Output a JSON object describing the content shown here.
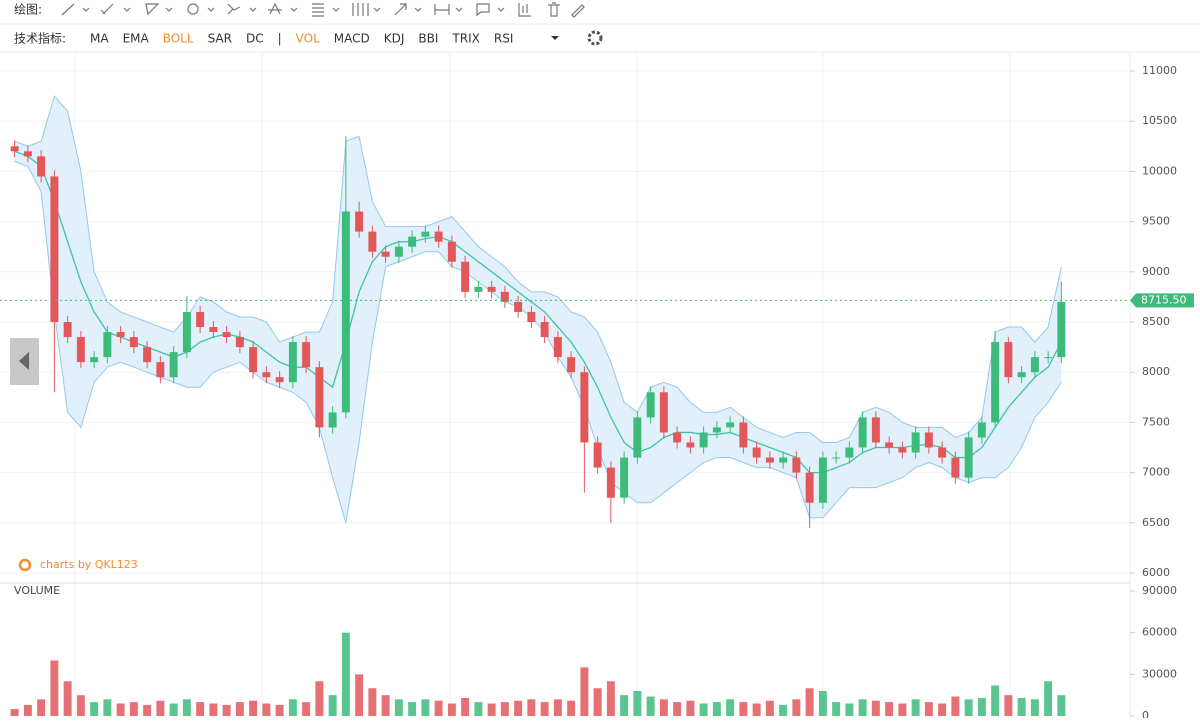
{
  "toolbar": {
    "draw_label": "绘图:",
    "indicator_label": "技术指标:",
    "indicators": [
      "MA",
      "EMA",
      "BOLL",
      "SAR",
      "DC",
      "|",
      "VOL",
      "MACD",
      "KDJ",
      "BBI",
      "TRIX",
      "RSI"
    ],
    "active": [
      "BOLL",
      "VOL"
    ],
    "active_color": "#f08c2e"
  },
  "watermark": "charts by QKL123",
  "chart_data": [
    {
      "type": "candlestick",
      "up_color": "#3dbb7a",
      "down_color": "#e2575a",
      "open": [
        10250,
        10200,
        10150,
        9950,
        8500,
        8350,
        8100,
        8150,
        8400,
        8350,
        8250,
        8100,
        7950,
        8200,
        8600,
        8450,
        8400,
        8350,
        8250,
        8000,
        7950,
        7900,
        8300,
        8050,
        7450,
        7600,
        9600,
        9400,
        9200,
        9150,
        9250,
        9350,
        9400,
        9300,
        9100,
        8800,
        8850,
        8800,
        8700,
        8600,
        8500,
        8350,
        8150,
        8000,
        7300,
        7050,
        6750,
        7150,
        7550,
        7800,
        7400,
        7300,
        7250,
        7400,
        7450,
        7500,
        7250,
        7150,
        7100,
        7150,
        7000,
        6700,
        7150,
        7150,
        7250,
        7550,
        7300,
        7250,
        7200,
        7400,
        7250,
        7150,
        6950,
        7350,
        7500,
        8300,
        7950,
        8000,
        8150,
        8150
      ],
      "high": [
        10310,
        10260,
        10210,
        10010,
        8560,
        8410,
        8210,
        8460,
        8460,
        8410,
        8310,
        8160,
        8260,
        8760,
        8660,
        8510,
        8460,
        8410,
        8310,
        8060,
        8010,
        8360,
        8360,
        8110,
        7660,
        10350,
        9700,
        9460,
        9260,
        9310,
        9410,
        9460,
        9460,
        9360,
        9160,
        8910,
        8910,
        8860,
        8760,
        8660,
        8560,
        8410,
        8210,
        8060,
        7360,
        7110,
        7210,
        7610,
        7860,
        7860,
        7460,
        7360,
        7460,
        7510,
        7560,
        7560,
        7310,
        7210,
        7210,
        7210,
        7060,
        7210,
        7210,
        7310,
        7610,
        7610,
        7360,
        7310,
        7460,
        7460,
        7310,
        7210,
        7410,
        7560,
        8410,
        8350,
        8060,
        8210,
        8210,
        8900
      ],
      "low": [
        10140,
        10090,
        9890,
        7800,
        8290,
        8040,
        8040,
        8090,
        8290,
        8190,
        8040,
        7890,
        7890,
        8140,
        8390,
        8340,
        8290,
        8190,
        7940,
        7890,
        7840,
        7840,
        7990,
        7350,
        7390,
        7540,
        9340,
        9140,
        9090,
        9090,
        9190,
        9290,
        9240,
        9040,
        8740,
        8740,
        8740,
        8640,
        8540,
        8440,
        8290,
        8090,
        7940,
        6800,
        6990,
        6500,
        6690,
        7090,
        7490,
        7340,
        7240,
        7190,
        7190,
        7340,
        7390,
        7190,
        7090,
        7040,
        7040,
        6940,
        6450,
        6640,
        7090,
        7090,
        7190,
        7240,
        7190,
        7140,
        7140,
        7190,
        7090,
        6890,
        6890,
        7290,
        7440,
        7890,
        7890,
        7940,
        8090,
        8090
      ],
      "close": [
        10200,
        10150,
        9950,
        8500,
        8350,
        8100,
        8150,
        8400,
        8350,
        8250,
        8100,
        7950,
        8200,
        8600,
        8450,
        8400,
        8350,
        8250,
        8000,
        7950,
        7900,
        8300,
        8050,
        7450,
        7600,
        9600,
        9400,
        9200,
        9150,
        9250,
        9350,
        9400,
        9300,
        9100,
        8800,
        8850,
        8800,
        8700,
        8600,
        8500,
        8350,
        8150,
        8000,
        7300,
        7050,
        6750,
        7150,
        7550,
        7800,
        7400,
        7300,
        7250,
        7400,
        7450,
        7500,
        7250,
        7150,
        7100,
        7150,
        7000,
        6700,
        7150,
        7150,
        7250,
        7550,
        7300,
        7250,
        7200,
        7400,
        7250,
        7150,
        6950,
        7350,
        7500,
        8300,
        7950,
        8000,
        8150,
        8150,
        8700
      ],
      "boll": {
        "band_color": "#d9ecfa",
        "edge_color": "#93c8ee",
        "mid_color": "#41c4a6",
        "upper": [
          10300,
          10250,
          10300,
          10750,
          10600,
          10000,
          9000,
          8700,
          8600,
          8550,
          8500,
          8450,
          8400,
          8550,
          8750,
          8700,
          8600,
          8550,
          8550,
          8500,
          8300,
          8350,
          8400,
          8400,
          8700,
          10300,
          10350,
          9700,
          9450,
          9450,
          9450,
          9450,
          9500,
          9550,
          9400,
          9250,
          9150,
          9050,
          8900,
          8800,
          8800,
          8750,
          8600,
          8550,
          8400,
          8100,
          7700,
          7600,
          7850,
          7900,
          7850,
          7700,
          7600,
          7600,
          7650,
          7550,
          7450,
          7400,
          7350,
          7400,
          7400,
          7300,
          7300,
          7350,
          7600,
          7650,
          7600,
          7500,
          7450,
          7450,
          7450,
          7350,
          7400,
          7550,
          8400,
          8450,
          8450,
          8300,
          8450,
          9050
        ],
        "mid": [
          10200,
          10150,
          10050,
          9700,
          9300,
          8900,
          8600,
          8400,
          8350,
          8300,
          8250,
          8200,
          8150,
          8200,
          8300,
          8350,
          8380,
          8350,
          8300,
          8200,
          8100,
          8050,
          8050,
          7950,
          7850,
          8300,
          8800,
          9100,
          9250,
          9300,
          9300,
          9330,
          9350,
          9300,
          9200,
          9100,
          9000,
          8900,
          8800,
          8700,
          8600,
          8450,
          8300,
          8100,
          7850,
          7550,
          7300,
          7200,
          7250,
          7350,
          7400,
          7400,
          7380,
          7380,
          7400,
          7350,
          7300,
          7250,
          7200,
          7150,
          7000,
          7000,
          7050,
          7100,
          7200,
          7250,
          7250,
          7250,
          7270,
          7280,
          7250,
          7150,
          7150,
          7250,
          7450,
          7650,
          7800,
          7950,
          8050,
          8300
        ],
        "lower": [
          10100,
          10050,
          9800,
          8600,
          7600,
          7450,
          7900,
          8050,
          8100,
          8050,
          8000,
          7950,
          7900,
          7850,
          7850,
          8000,
          8050,
          8100,
          8000,
          7900,
          7850,
          7800,
          7700,
          7450,
          6950,
          6500,
          7300,
          8300,
          9050,
          9100,
          9150,
          9200,
          9200,
          9050,
          9000,
          8900,
          8800,
          8700,
          8650,
          8550,
          8400,
          8150,
          7950,
          7650,
          7250,
          6900,
          6800,
          6700,
          6700,
          6800,
          6900,
          7000,
          7100,
          7150,
          7150,
          7100,
          7050,
          7050,
          7000,
          6950,
          6550,
          6550,
          6700,
          6850,
          6850,
          6850,
          6900,
          6950,
          7050,
          7100,
          7050,
          6950,
          6900,
          6950,
          6950,
          7050,
          7250,
          7550,
          7700,
          7900
        ]
      },
      "ylim": [
        5950,
        11190
      ],
      "yticks": [
        6000,
        6500,
        7000,
        7500,
        8000,
        8500,
        9000,
        9500,
        10000,
        10500,
        11000
      ],
      "grid": true,
      "last_price": {
        "value": 8715.5,
        "label": "8715.50"
      },
      "last_color": "#3dbb7a"
    },
    {
      "type": "bar",
      "title": "VOLUME",
      "values": [
        5000,
        8000,
        12000,
        40000,
        25000,
        15000,
        10000,
        12000,
        9000,
        10000,
        8000,
        11000,
        9000,
        12000,
        10000,
        9000,
        8000,
        10000,
        11000,
        9000,
        8000,
        12000,
        10000,
        25000,
        15000,
        60000,
        30000,
        20000,
        15000,
        12000,
        10000,
        12000,
        11000,
        9000,
        13000,
        10000,
        9000,
        10000,
        11000,
        12000,
        10000,
        12000,
        11000,
        35000,
        20000,
        25000,
        15000,
        18000,
        14000,
        12000,
        10000,
        11000,
        9000,
        10000,
        12000,
        10000,
        9000,
        11000,
        8000,
        12000,
        20000,
        18000,
        10000,
        9000,
        12000,
        11000,
        10000,
        9000,
        12000,
        10000,
        9000,
        14000,
        12000,
        13000,
        22000,
        15000,
        13000,
        12000,
        25000,
        15000
      ],
      "ylim": [
        0,
        90000
      ],
      "yticks": [
        0,
        30000,
        60000,
        90000
      ]
    }
  ]
}
